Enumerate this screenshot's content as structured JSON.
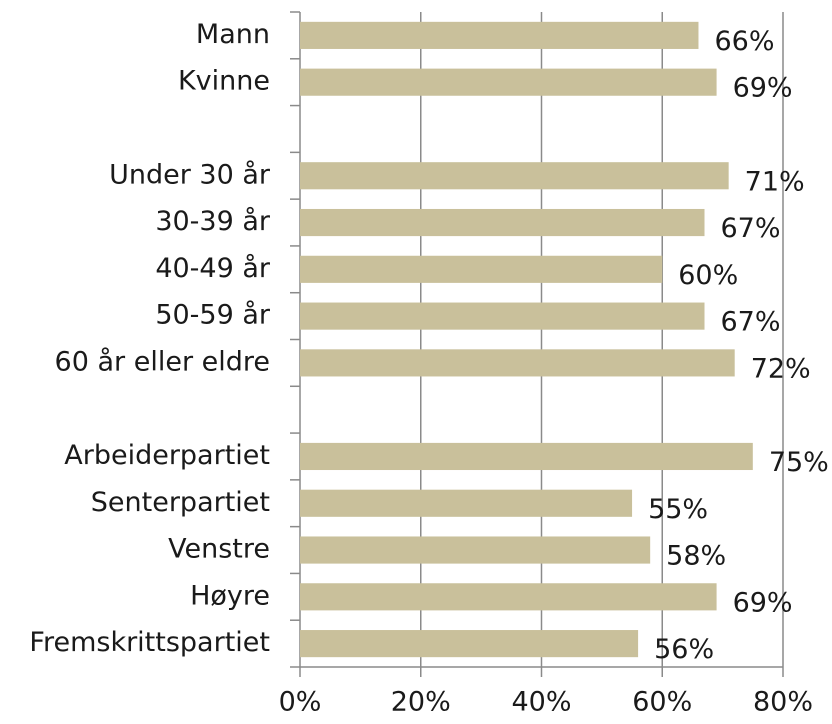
{
  "chart_data": {
    "type": "barh",
    "categories": [
      "Mann",
      "Kvinne",
      null,
      "Under 30 år",
      "30-39 år",
      "40-49 år",
      "50-59 år",
      "60 år eller eldre",
      null,
      "Arbeiderpartiet",
      "Senterpartiet",
      "Venstre",
      "Høyre",
      "Fremskrittspartiet"
    ],
    "values": [
      66,
      69,
      null,
      71,
      67,
      60,
      67,
      72,
      null,
      75,
      55,
      58,
      69,
      56
    ],
    "value_labels": [
      "66%",
      "69%",
      null,
      "71%",
      "67%",
      "60%",
      "67%",
      "72%",
      null,
      "75%",
      "55%",
      "58%",
      "69%",
      "56%"
    ],
    "color": "#c9c09b",
    "xlim": [
      0,
      80
    ],
    "xticks": [
      {
        "value": 0,
        "label": "0%"
      },
      {
        "value": 20,
        "label": "20%"
      },
      {
        "value": 40,
        "label": "40%"
      },
      {
        "value": 60,
        "label": "60%"
      },
      {
        "value": 80,
        "label": "80%"
      }
    ],
    "grid": true
  }
}
